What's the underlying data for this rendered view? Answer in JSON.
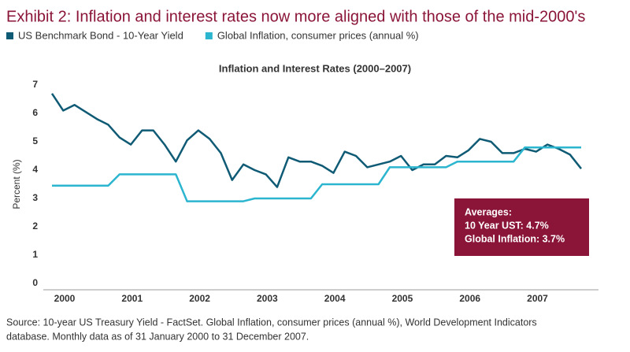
{
  "chart_data": {
    "type": "line",
    "title": "Exhibit 2: Inflation and interest rates now more aligned with those of the mid-2000's",
    "subtitle": "Inflation and Interest Rates (2000–2007)",
    "y_label": "Percent (%)",
    "annotations": [
      "Averages:",
      "10 Year UST: 4.7%",
      "Global Inflation: 3.7%"
    ],
    "source": [
      "Source: 10-year US Treasury Yield - FactSet. Global Inflation, consumer prices (annual %), World Development Indicators",
      "database. Monthly data as of 31 January 2000 to 31 December 2007."
    ],
    "categories": [
      "2000",
      null,
      null,
      null,
      null,
      null,
      "2001",
      null,
      null,
      null,
      null,
      null,
      "2002",
      null,
      null,
      null,
      null,
      null,
      "2003",
      null,
      null,
      null,
      null,
      null,
      "2004",
      null,
      null,
      null,
      null,
      null,
      "2005",
      null,
      null,
      null,
      null,
      null,
      "2006",
      null,
      null,
      null,
      null,
      null,
      "2007",
      null,
      null,
      null,
      null,
      null
    ],
    "series": [
      {
        "name": "US Benchmark Bond - 10-Year Yield",
        "color": "#0f5a74",
        "values": [
          6.7,
          6.1,
          6.3,
          6.05,
          5.8,
          5.6,
          5.15,
          4.9,
          5.4,
          5.4,
          4.9,
          4.3,
          5.05,
          5.4,
          5.1,
          4.6,
          3.65,
          4.2,
          4.0,
          3.85,
          3.4,
          4.45,
          4.3,
          4.3,
          4.15,
          3.9,
          4.65,
          4.5,
          4.1,
          4.2,
          4.3,
          4.5,
          4.0,
          4.2,
          4.2,
          4.5,
          4.45,
          4.7,
          5.1,
          5.0,
          4.6,
          4.6,
          4.75,
          4.65,
          4.9,
          4.75,
          4.55,
          4.05
        ]
      },
      {
        "name": "Global Inflation, consumer prices (annual %)",
        "color": "#2bb5cf",
        "values": [
          3.45,
          3.45,
          3.45,
          3.45,
          3.45,
          3.45,
          3.85,
          3.85,
          3.85,
          3.85,
          3.85,
          3.85,
          2.9,
          2.9,
          2.9,
          2.9,
          2.9,
          2.9,
          3.0,
          3.0,
          3.0,
          3.0,
          3.0,
          3.0,
          3.5,
          3.5,
          3.5,
          3.5,
          3.5,
          3.5,
          4.1,
          4.1,
          4.1,
          4.1,
          4.1,
          4.1,
          4.3,
          4.3,
          4.3,
          4.3,
          4.3,
          4.3,
          4.8,
          4.8,
          4.8,
          4.8,
          4.8,
          4.8
        ]
      }
    ],
    "ylim": [
      0,
      7
    ],
    "yticks": [
      0,
      1,
      2,
      3,
      4,
      5,
      6,
      7
    ],
    "grid": false,
    "box_color": "#8a1538"
  }
}
